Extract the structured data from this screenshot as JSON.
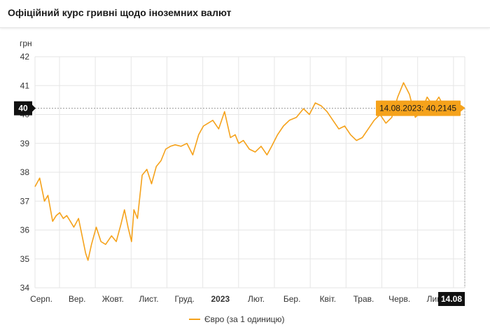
{
  "header": {
    "title": "Офіційний курс гривні щодо іноземних валют"
  },
  "colors": {
    "series": "#f5a21b",
    "tooltip_bg": "#f5a21b",
    "marker_bg": "#111111",
    "grid": "#e6e6e6"
  },
  "chart_data": {
    "type": "line",
    "title": "Офіційний курс гривні щодо іноземних валют",
    "ylabel": "грн",
    "xlabel": "",
    "ylim": [
      34,
      42
    ],
    "yticks": [
      34,
      35,
      36,
      37,
      38,
      39,
      40,
      41,
      42
    ],
    "xticks": [
      "Серп.",
      "Вер.",
      "Жовт.",
      "Лист.",
      "Груд.",
      "2023",
      "Лют.",
      "Бер.",
      "Квіт.",
      "Трав.",
      "Черв.",
      "Лип."
    ],
    "x_range": [
      "2022-08-14",
      "2023-08-14"
    ],
    "grid": true,
    "legend_position": "bottom",
    "crosshair": {
      "y_label": "40",
      "x_label": "14.08"
    },
    "tooltip": "14.08.2023: 40,2145",
    "series": [
      {
        "name": "Євро (за 1 одиницю)",
        "x": [
          "2022-08-14",
          "2022-08-18",
          "2022-08-22",
          "2022-08-25",
          "2022-08-29",
          "2022-09-01",
          "2022-09-04",
          "2022-09-07",
          "2022-09-10",
          "2022-09-13",
          "2022-09-16",
          "2022-09-20",
          "2022-09-23",
          "2022-09-26",
          "2022-09-28",
          "2022-10-01",
          "2022-10-05",
          "2022-10-09",
          "2022-10-13",
          "2022-10-18",
          "2022-10-22",
          "2022-10-26",
          "2022-10-29",
          "2022-11-01",
          "2022-11-04",
          "2022-11-06",
          "2022-11-09",
          "2022-11-13",
          "2022-11-17",
          "2022-11-21",
          "2022-11-25",
          "2022-11-29",
          "2022-12-03",
          "2022-12-07",
          "2022-12-11",
          "2022-12-16",
          "2022-12-21",
          "2022-12-26",
          "2022-12-31",
          "2023-01-04",
          "2023-01-08",
          "2023-01-12",
          "2023-01-17",
          "2023-01-22",
          "2023-01-27",
          "2023-01-31",
          "2023-02-03",
          "2023-02-07",
          "2023-02-12",
          "2023-02-17",
          "2023-02-22",
          "2023-02-27",
          "2023-03-03",
          "2023-03-08",
          "2023-03-13",
          "2023-03-18",
          "2023-03-24",
          "2023-03-30",
          "2023-04-04",
          "2023-04-09",
          "2023-04-14",
          "2023-04-19",
          "2023-04-24",
          "2023-04-29",
          "2023-05-04",
          "2023-05-09",
          "2023-05-14",
          "2023-05-19",
          "2023-05-24",
          "2023-05-29",
          "2023-06-03",
          "2023-06-08",
          "2023-06-13",
          "2023-06-18",
          "2023-06-23",
          "2023-06-28",
          "2023-07-03",
          "2023-07-08",
          "2023-07-13",
          "2023-07-18",
          "2023-07-23",
          "2023-07-28",
          "2023-08-02",
          "2023-08-07",
          "2023-08-11",
          "2023-08-14"
        ],
        "values": [
          37.5,
          37.8,
          37.0,
          37.2,
          36.3,
          36.5,
          36.6,
          36.4,
          36.5,
          36.3,
          36.1,
          36.4,
          35.8,
          35.2,
          34.95,
          35.5,
          36.1,
          35.6,
          35.5,
          35.8,
          35.6,
          36.2,
          36.7,
          36.1,
          35.6,
          36.7,
          36.4,
          37.9,
          38.1,
          37.6,
          38.2,
          38.4,
          38.8,
          38.9,
          38.95,
          38.9,
          39.0,
          38.6,
          39.3,
          39.6,
          39.7,
          39.8,
          39.5,
          40.1,
          39.2,
          39.3,
          39.0,
          39.1,
          38.8,
          38.7,
          38.9,
          38.6,
          38.9,
          39.3,
          39.6,
          39.8,
          39.9,
          40.2,
          40.0,
          40.4,
          40.3,
          40.1,
          39.8,
          39.5,
          39.6,
          39.3,
          39.1,
          39.2,
          39.5,
          39.8,
          40.0,
          39.7,
          39.9,
          40.6,
          41.1,
          40.7,
          39.9,
          40.1,
          40.6,
          40.3,
          40.6,
          40.2,
          40.4,
          40.1,
          40.3,
          40.2145
        ]
      }
    ]
  }
}
